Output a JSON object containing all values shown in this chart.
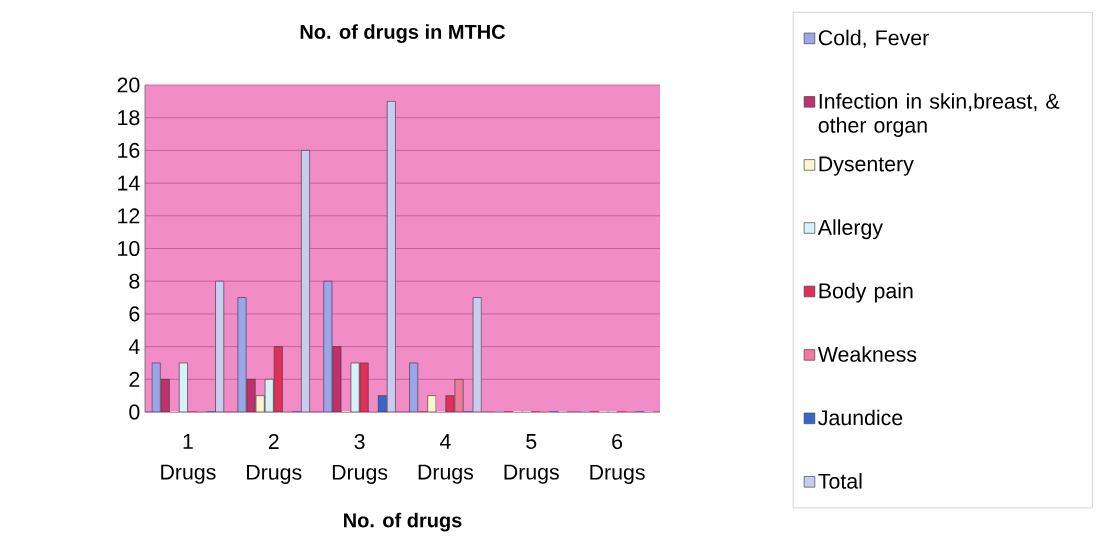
{
  "chart_data": {
    "type": "bar",
    "title": "No. of drugs in MTHC",
    "xlabel": "No. of drugs",
    "categories": [
      "1 Drugs",
      "2 Drugs",
      "3 Drugs",
      "4 Drugs",
      "5 Drugs",
      "6 Drugs"
    ],
    "series": [
      {
        "name": "Cold, Fever",
        "color": "#9aa6e8",
        "values": [
          3,
          7,
          8,
          3,
          0,
          0
        ]
      },
      {
        "name": "Infection in skin,breast, & other organ",
        "color": "#c0306a",
        "values": [
          2,
          2,
          4,
          0,
          0,
          0
        ]
      },
      {
        "name": "Dysentery",
        "color": "#fbf6cc",
        "values": [
          0,
          1,
          0,
          1,
          0,
          0
        ]
      },
      {
        "name": "Allergy",
        "color": "#d6f2f6",
        "values": [
          3,
          2,
          3,
          0,
          0,
          0
        ]
      },
      {
        "name": "Body pain",
        "color": "#e03058",
        "values": [
          0,
          4,
          3,
          1,
          0,
          0
        ]
      },
      {
        "name": "Weakness",
        "color": "#f07a9a",
        "values": [
          0,
          0,
          0,
          2,
          0,
          0
        ]
      },
      {
        "name": "Jaundice",
        "color": "#3566c8",
        "values": [
          0,
          0,
          1,
          0,
          0,
          0
        ]
      },
      {
        "name": "Total",
        "color": "#c8cdf0",
        "values": [
          8,
          16,
          19,
          7,
          0,
          0
        ]
      }
    ],
    "ylim": [
      0,
      20
    ],
    "yticks": [
      0,
      2,
      4,
      6,
      8,
      10,
      12,
      14,
      16,
      18,
      20
    ],
    "grid": "y",
    "legend": "right"
  }
}
